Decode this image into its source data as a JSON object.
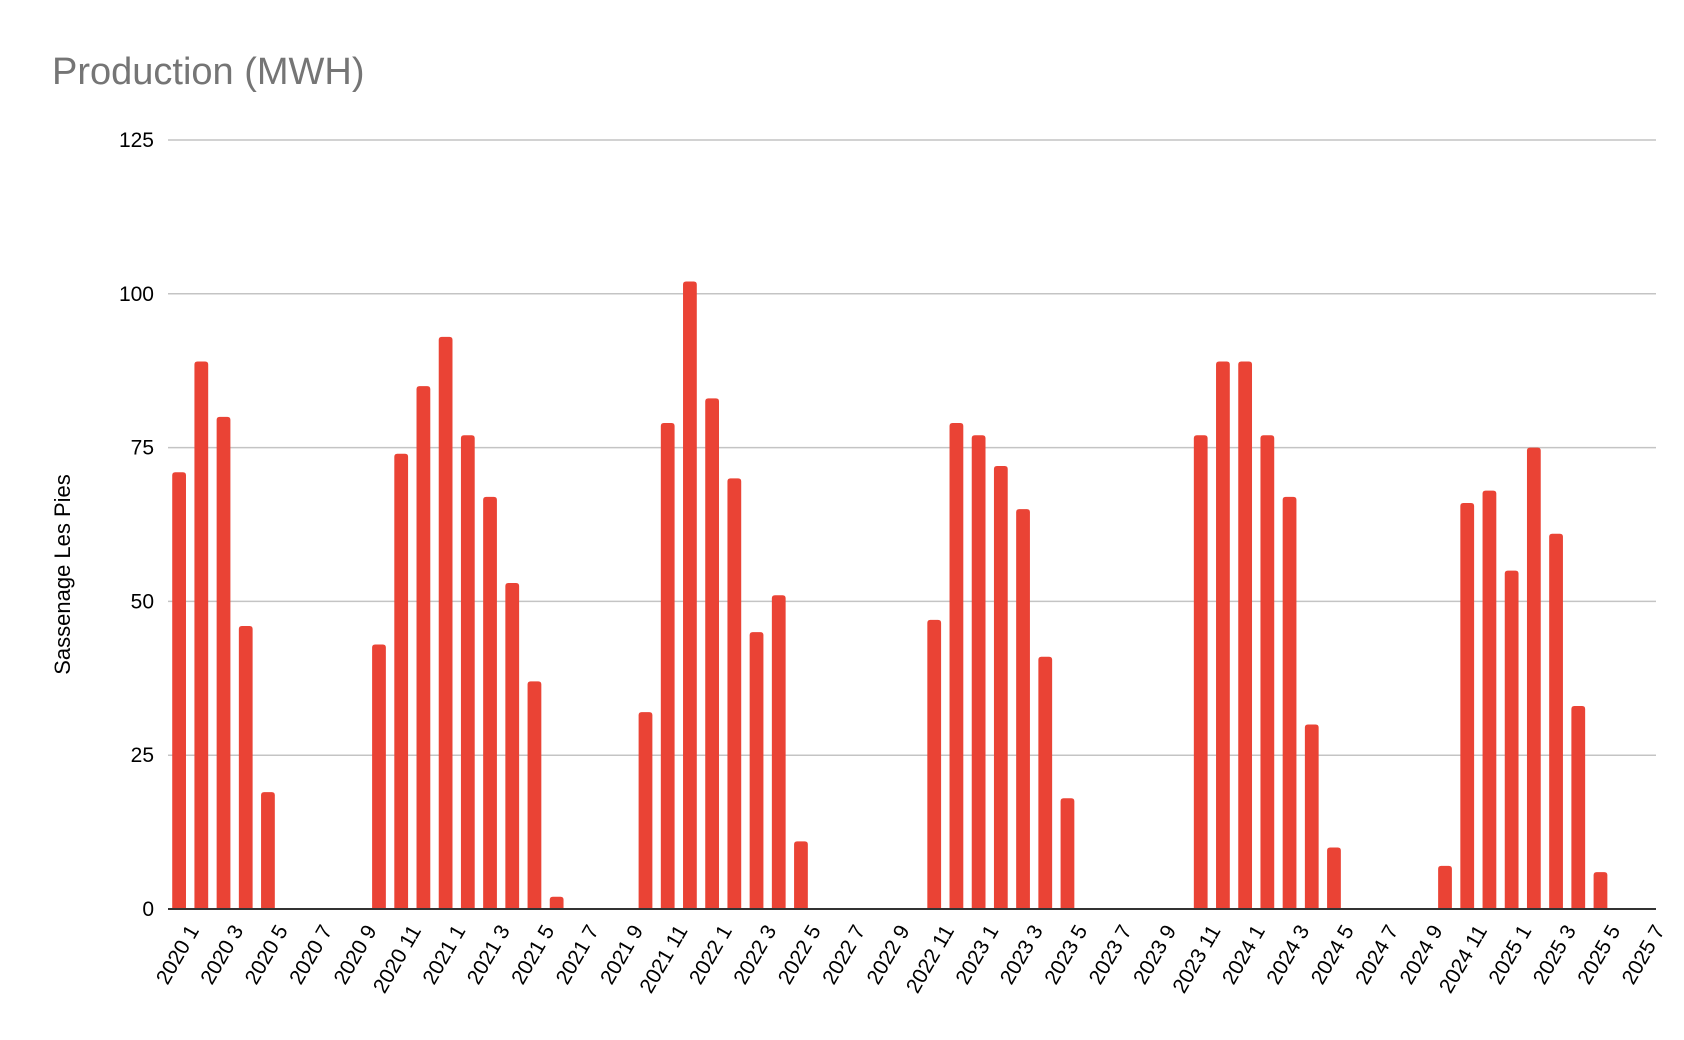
{
  "chart_data": {
    "type": "bar",
    "title": "Production (MWH)",
    "xlabel": "",
    "ylabel": "Sassenage Les Pies",
    "ylim": [
      0,
      125
    ],
    "yticks": [
      0,
      25,
      50,
      75,
      100,
      125
    ],
    "grid": true,
    "legend": "none",
    "bar_color": "#ea4335",
    "categories": [
      "2020 1",
      "2020 2",
      "2020 3",
      "2020 4",
      "2020 5",
      "2020 6",
      "2020 7",
      "2020 8",
      "2020 9",
      "2020 10",
      "2020 11",
      "2020 12",
      "2021 1",
      "2021 2",
      "2021 3",
      "2021 4",
      "2021 5",
      "2021 6",
      "2021 7",
      "2021 8",
      "2021 9",
      "2021 10",
      "2021 11",
      "2021 12",
      "2022 1",
      "2022 2",
      "2022 3",
      "2022 4",
      "2022 5",
      "2022 6",
      "2022 7",
      "2022 8",
      "2022 9",
      "2022 10",
      "2022 11",
      "2022 12",
      "2023 1",
      "2023 2",
      "2023 3",
      "2023 4",
      "2023 5",
      "2023 6",
      "2023 7",
      "2023 8",
      "2023 9",
      "2023 10",
      "2023 11",
      "2023 12",
      "2024 1",
      "2024 2",
      "2024 3",
      "2024 4",
      "2024 5",
      "2024 6",
      "2024 7",
      "2024 8",
      "2024 9",
      "2024 10",
      "2024 11",
      "2024 12",
      "2025 1",
      "2025 2",
      "2025 3",
      "2025 4",
      "2025 5",
      "2025 6",
      "2025 7"
    ],
    "visible_tick_labels": [
      "2020 1",
      "2020 3",
      "2020 5",
      "2020 7",
      "2020 9",
      "2020 11",
      "2021 1",
      "2021 3",
      "2021 5",
      "2021 7",
      "2021 9",
      "2021 11",
      "2022 1",
      "2022 3",
      "2022 5",
      "2022 7",
      "2022 9",
      "2022 11",
      "2023 1",
      "2023 3",
      "2023 5",
      "2023 7",
      "2023 9",
      "2023 11",
      "2024 1",
      "2024 3",
      "2024 5",
      "2024 7",
      "2024 9",
      "2024 11",
      "2025 1",
      "2025 3",
      "2025 5",
      "2025 7"
    ],
    "values": [
      71,
      89,
      80,
      46,
      19,
      0,
      0,
      0,
      0,
      43,
      74,
      85,
      93,
      77,
      67,
      53,
      37,
      2,
      0,
      0,
      0,
      32,
      79,
      102,
      83,
      70,
      45,
      51,
      11,
      0,
      0,
      0,
      0,
      0,
      47,
      79,
      77,
      72,
      65,
      41,
      18,
      0,
      0,
      0,
      0,
      0,
      77,
      89,
      89,
      77,
      67,
      30,
      10,
      0,
      0,
      0,
      0,
      7,
      66,
      68,
      55,
      75,
      61,
      33,
      6,
      0,
      0
    ]
  }
}
